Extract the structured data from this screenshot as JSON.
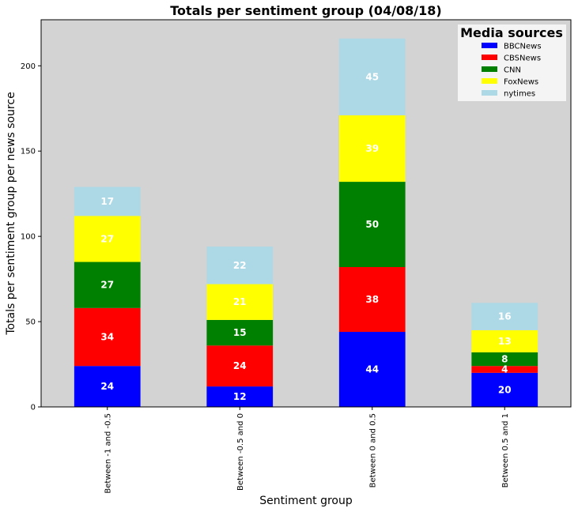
{
  "chart_data": {
    "type": "bar",
    "stacked": true,
    "title": "Totals per sentiment group (04/08/18)",
    "xlabel": "Sentiment group",
    "ylabel": "Totals per sentiment group per news source",
    "categories": [
      "Between -1 and -0.5",
      "Between -0.5 and 0",
      "Between 0 and 0.5",
      "Between 0.5 and 1"
    ],
    "series": [
      {
        "name": "BBCNews",
        "color": "#0000ff",
        "values": [
          24,
          12,
          44,
          20
        ]
      },
      {
        "name": "CBSNews",
        "color": "#ff0000",
        "values": [
          34,
          24,
          38,
          4
        ]
      },
      {
        "name": "CNN",
        "color": "#008000",
        "values": [
          27,
          15,
          50,
          8
        ]
      },
      {
        "name": "FoxNews",
        "color": "#ffff00",
        "values": [
          27,
          21,
          39,
          13
        ]
      },
      {
        "name": "nytimes",
        "color": "#add8e6",
        "values": [
          17,
          22,
          45,
          16
        ]
      }
    ],
    "ylim": [
      0,
      227
    ],
    "yticks": [
      "0",
      "50",
      "100",
      "150",
      "200"
    ],
    "legend": {
      "title": "Media sources",
      "placement": "top-right"
    },
    "grid": false,
    "plot_background": "#d3d3d3"
  }
}
